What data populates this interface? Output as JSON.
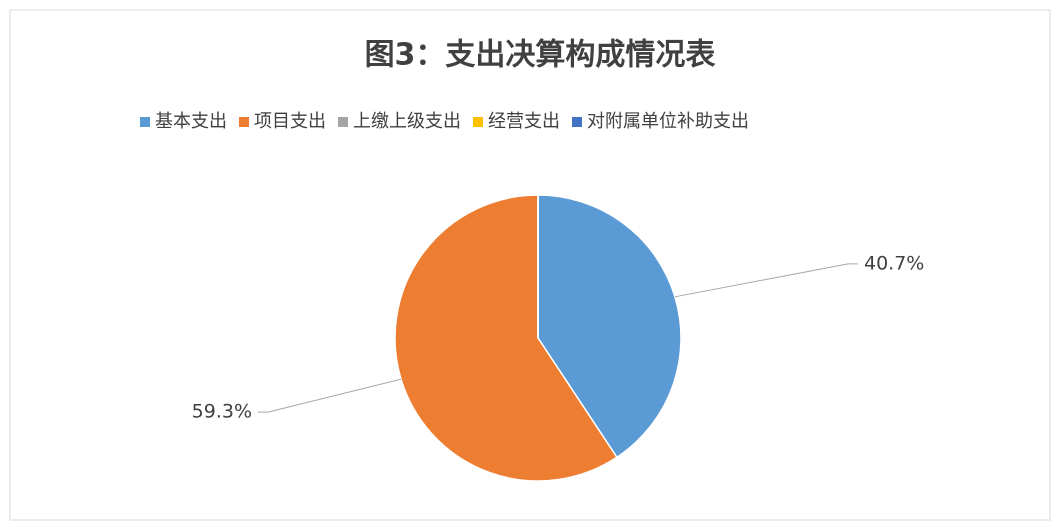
{
  "chart_data": {
    "type": "pie",
    "title": "图3：支出决算构成情况表",
    "categories": [
      "基本支出",
      "项目支出",
      "上缴上级支出",
      "经营支出",
      "对附属单位补助支出"
    ],
    "values": [
      40.7,
      59.3,
      0,
      0,
      0
    ],
    "value_labels": [
      "40.7%",
      "59.3%",
      null,
      null,
      null
    ],
    "colors": [
      "#5b9bd5",
      "#ed7d31",
      "#a5a5a5",
      "#ffc000",
      "#4472c4"
    ],
    "legend": "top"
  }
}
